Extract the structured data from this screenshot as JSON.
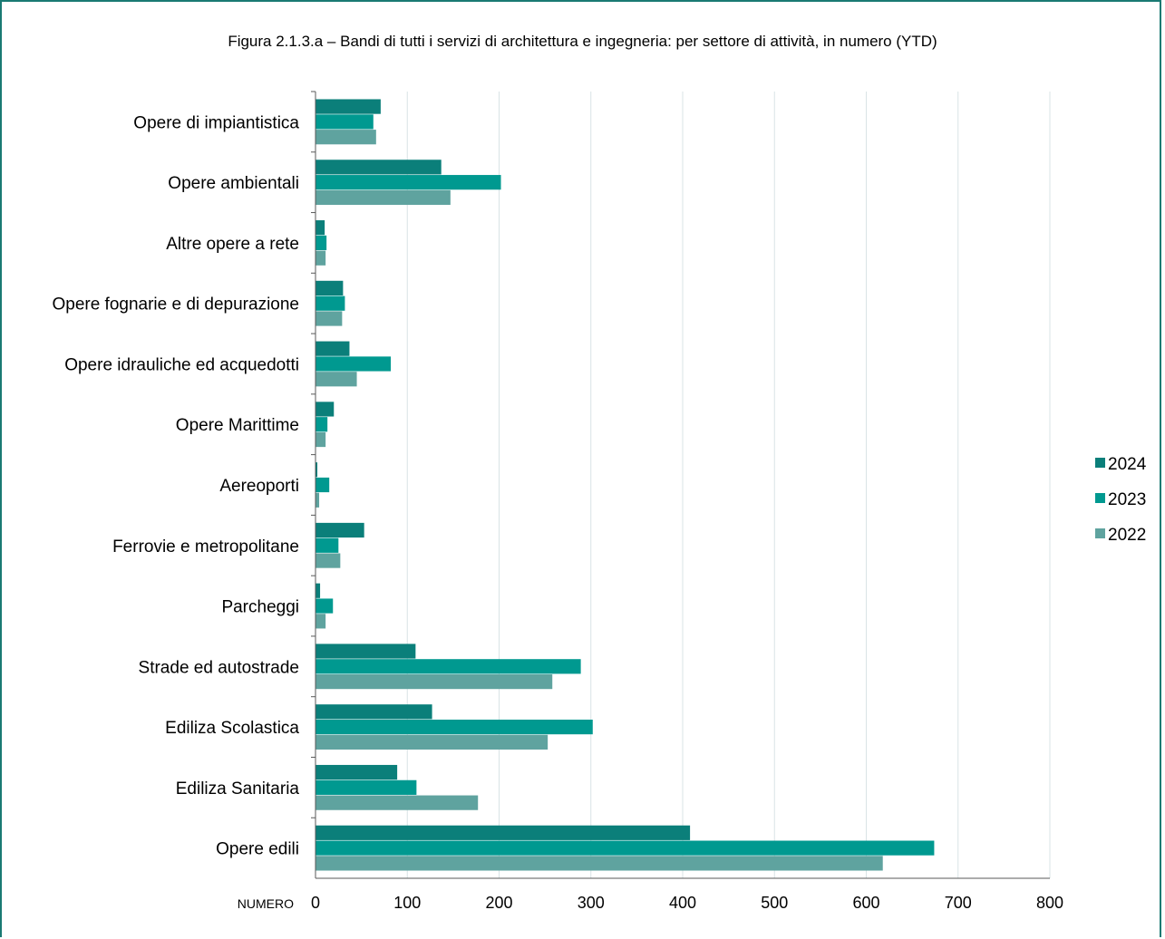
{
  "chart_data": {
    "type": "bar",
    "orientation": "horizontal",
    "title": "Figura 2.1.3.a – Bandi di tutti i servizi di architettura e ingegneria: per settore di attività, in numero (YTD)",
    "xlabel": "NUMERO",
    "ylabel": "",
    "xlim": [
      0,
      800
    ],
    "xticks": [
      "0",
      "100",
      "200",
      "300",
      "400",
      "500",
      "600",
      "700",
      "800"
    ],
    "grid": "vertical",
    "legend_position": "right",
    "categories": [
      "Opere di impiantistica",
      "Opere ambientali",
      "Altre opere a rete",
      "Opere fognarie e di depurazione",
      "Opere idrauliche ed acquedotti",
      "Opere Marittime",
      "Aereoporti",
      "Ferrovie e metropolitane",
      "Parcheggi",
      "Strade ed autostrade",
      "Ediliza Scolastica",
      "Ediliza Sanitaria",
      "Opere edili"
    ],
    "series": [
      {
        "name": "2024",
        "color": "#0b7f7a",
        "values": [
          71,
          137,
          10,
          30,
          37,
          20,
          2,
          53,
          5,
          109,
          127,
          89,
          408
        ]
      },
      {
        "name": "2023",
        "color": "#009990",
        "values": [
          63,
          202,
          12,
          32,
          82,
          13,
          15,
          25,
          19,
          289,
          302,
          110,
          674
        ]
      },
      {
        "name": "2022",
        "color": "#5fa39f",
        "values": [
          66,
          147,
          11,
          29,
          45,
          11,
          4,
          27,
          11,
          258,
          253,
          177,
          618
        ]
      }
    ]
  }
}
